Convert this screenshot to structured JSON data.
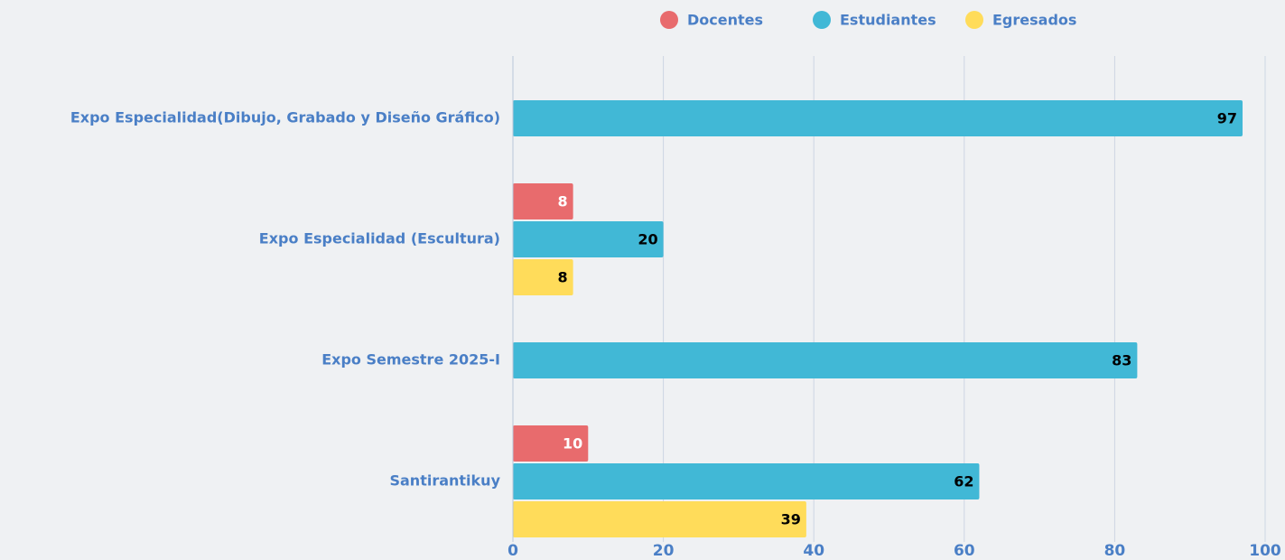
{
  "chart_data": {
    "type": "bar",
    "orientation": "horizontal",
    "categories": [
      "Expo Especialidad(Dibujo, Grabado y Diseño Gráfico)",
      "Expo Especialidad (Escultura)",
      "Expo Semestre 2025-I",
      "Santirantikuy"
    ],
    "series": [
      {
        "name": "Docentes",
        "color": "#e86b6d",
        "label_color": "#ffffff",
        "values": [
          null,
          8,
          null,
          10
        ]
      },
      {
        "name": "Estudiantes",
        "color": "#41b8d6",
        "label_color": "#000000",
        "values": [
          97,
          20,
          83,
          62
        ]
      },
      {
        "name": "Egresados",
        "color": "#ffdc5a",
        "label_color": "#000000",
        "values": [
          null,
          8,
          null,
          39
        ]
      }
    ],
    "xlim": [
      0,
      100
    ],
    "xticks": [
      0,
      20,
      40,
      60,
      80,
      100
    ],
    "grid": true,
    "legend": "top"
  }
}
